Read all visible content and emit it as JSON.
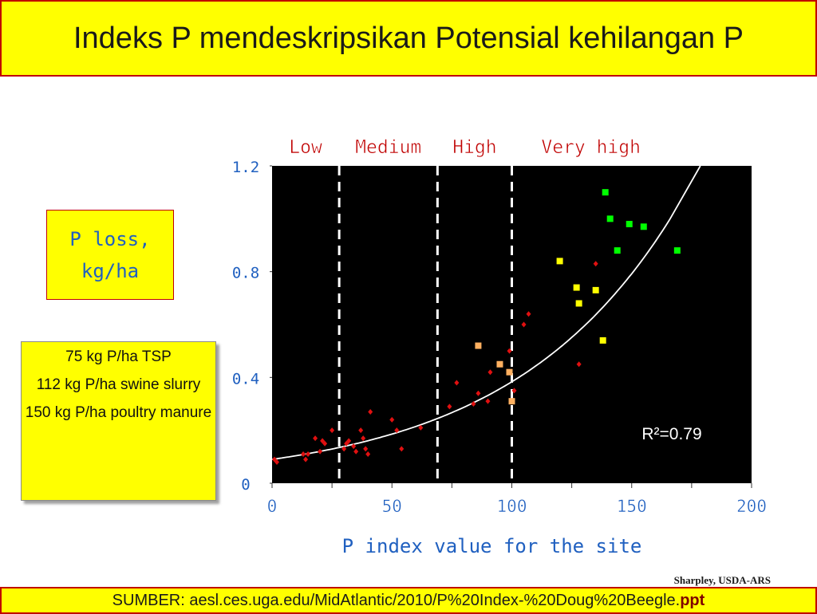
{
  "slide": {
    "title": "Indeks P  mendeskripsikan Potensial kehilangan P",
    "ylabel_line1": "P loss,",
    "ylabel_line2": "kg/ha",
    "notes": [
      "75 kg P/ha TSP",
      "112 kg P/ha swine slurry",
      "150 kg P/ha poultry manure"
    ],
    "credit": "Sharpley, USDA-ARS",
    "source_prefix": "SUMBER:  aesl.ces.uga.edu/MidAtlantic/2010/P%20Index-%20Doug%20Beegle.",
    "source_ext": "ppt"
  },
  "chart_data": {
    "type": "scatter",
    "title": "",
    "xlabel": "P index value for the site",
    "ylabel": "P loss, kg/ha",
    "xlim": [
      0,
      200
    ],
    "ylim": [
      0,
      1.2
    ],
    "x_ticks": [
      "0",
      "50",
      "100",
      "150",
      "200"
    ],
    "y_ticks": [
      "0",
      "0.4",
      "0.8",
      "1.2"
    ],
    "background": "#000000",
    "grid": false,
    "categories": [
      {
        "label": "Low",
        "from": 0,
        "to": 28
      },
      {
        "label": "Medium",
        "from": 28,
        "to": 69
      },
      {
        "label": "High",
        "from": 69,
        "to": 100
      },
      {
        "label": "Very high",
        "from": 100,
        "to": 200
      }
    ],
    "annotation": "R²=0.79",
    "series": [
      {
        "marker": "diamond",
        "color": "#e01010",
        "points": [
          [
            1,
            0.09
          ],
          [
            2,
            0.08
          ],
          [
            13,
            0.11
          ],
          [
            14,
            0.09
          ],
          [
            15,
            0.11
          ],
          [
            18,
            0.17
          ],
          [
            20,
            0.12
          ],
          [
            21,
            0.16
          ],
          [
            22,
            0.15
          ],
          [
            25,
            0.2
          ],
          [
            30,
            0.13
          ],
          [
            31,
            0.15
          ],
          [
            32,
            0.16
          ],
          [
            34,
            0.14
          ],
          [
            35,
            0.12
          ],
          [
            37,
            0.2
          ],
          [
            38,
            0.17
          ],
          [
            39,
            0.13
          ],
          [
            40,
            0.11
          ],
          [
            41,
            0.27
          ],
          [
            50,
            0.24
          ],
          [
            52,
            0.2
          ],
          [
            54,
            0.13
          ],
          [
            62,
            0.21
          ],
          [
            74,
            0.29
          ],
          [
            77,
            0.38
          ],
          [
            84,
            0.3
          ],
          [
            86,
            0.34
          ],
          [
            90,
            0.31
          ],
          [
            91,
            0.42
          ],
          [
            99,
            0.5
          ],
          [
            101,
            0.35
          ],
          [
            105,
            0.6
          ],
          [
            107,
            0.64
          ],
          [
            128,
            0.45
          ],
          [
            135,
            0.83
          ]
        ]
      },
      {
        "marker": "square",
        "color": "#ffb060",
        "points": [
          [
            86,
            0.52
          ],
          [
            95,
            0.45
          ],
          [
            99,
            0.42
          ],
          [
            100,
            0.31
          ]
        ]
      },
      {
        "marker": "square",
        "color": "#ffff00",
        "points": [
          [
            120,
            0.84
          ],
          [
            127,
            0.74
          ],
          [
            128,
            0.68
          ],
          [
            135,
            0.73
          ],
          [
            138,
            0.54
          ]
        ]
      },
      {
        "marker": "square",
        "color": "#00ff00",
        "points": [
          [
            139,
            1.1
          ],
          [
            141,
            1.0
          ],
          [
            144,
            0.88
          ],
          [
            149,
            0.98
          ],
          [
            155,
            0.97
          ],
          [
            169,
            0.88
          ]
        ]
      }
    ],
    "trendline": {
      "type": "exponential",
      "a": 0.09,
      "b": 0.0145
    }
  }
}
